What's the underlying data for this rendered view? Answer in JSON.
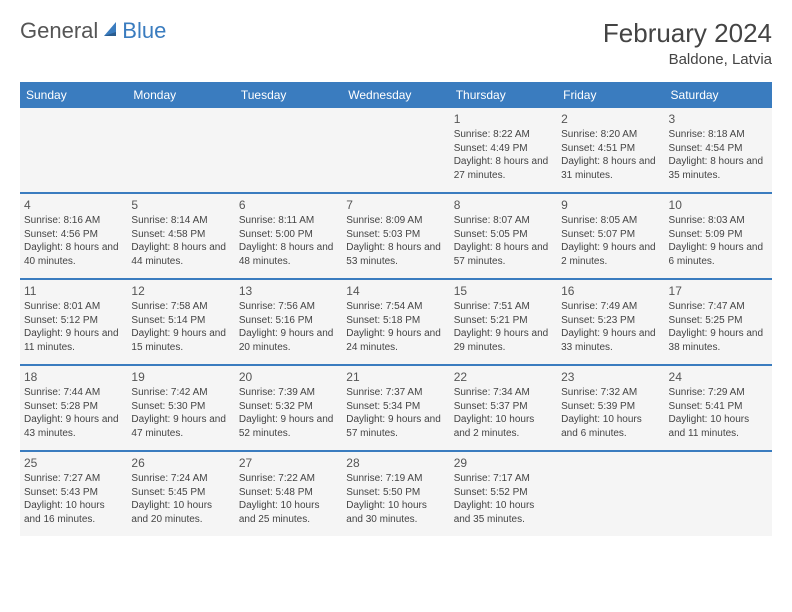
{
  "logo": {
    "text1": "General",
    "text2": "Blue"
  },
  "title": "February 2024",
  "location": "Baldone, Latvia",
  "colors": {
    "header_bg": "#3a7cbf",
    "header_text": "#ffffff",
    "cell_bg": "#f5f5f5",
    "border": "#3a7cbf",
    "title_color": "#444444",
    "body_text": "#444444"
  },
  "day_headers": [
    "Sunday",
    "Monday",
    "Tuesday",
    "Wednesday",
    "Thursday",
    "Friday",
    "Saturday"
  ],
  "weeks": [
    [
      null,
      null,
      null,
      null,
      {
        "n": "1",
        "sr": "8:22 AM",
        "ss": "4:49 PM",
        "dl": "8 hours and 27 minutes."
      },
      {
        "n": "2",
        "sr": "8:20 AM",
        "ss": "4:51 PM",
        "dl": "8 hours and 31 minutes."
      },
      {
        "n": "3",
        "sr": "8:18 AM",
        "ss": "4:54 PM",
        "dl": "8 hours and 35 minutes."
      }
    ],
    [
      {
        "n": "4",
        "sr": "8:16 AM",
        "ss": "4:56 PM",
        "dl": "8 hours and 40 minutes."
      },
      {
        "n": "5",
        "sr": "8:14 AM",
        "ss": "4:58 PM",
        "dl": "8 hours and 44 minutes."
      },
      {
        "n": "6",
        "sr": "8:11 AM",
        "ss": "5:00 PM",
        "dl": "8 hours and 48 minutes."
      },
      {
        "n": "7",
        "sr": "8:09 AM",
        "ss": "5:03 PM",
        "dl": "8 hours and 53 minutes."
      },
      {
        "n": "8",
        "sr": "8:07 AM",
        "ss": "5:05 PM",
        "dl": "8 hours and 57 minutes."
      },
      {
        "n": "9",
        "sr": "8:05 AM",
        "ss": "5:07 PM",
        "dl": "9 hours and 2 minutes."
      },
      {
        "n": "10",
        "sr": "8:03 AM",
        "ss": "5:09 PM",
        "dl": "9 hours and 6 minutes."
      }
    ],
    [
      {
        "n": "11",
        "sr": "8:01 AM",
        "ss": "5:12 PM",
        "dl": "9 hours and 11 minutes."
      },
      {
        "n": "12",
        "sr": "7:58 AM",
        "ss": "5:14 PM",
        "dl": "9 hours and 15 minutes."
      },
      {
        "n": "13",
        "sr": "7:56 AM",
        "ss": "5:16 PM",
        "dl": "9 hours and 20 minutes."
      },
      {
        "n": "14",
        "sr": "7:54 AM",
        "ss": "5:18 PM",
        "dl": "9 hours and 24 minutes."
      },
      {
        "n": "15",
        "sr": "7:51 AM",
        "ss": "5:21 PM",
        "dl": "9 hours and 29 minutes."
      },
      {
        "n": "16",
        "sr": "7:49 AM",
        "ss": "5:23 PM",
        "dl": "9 hours and 33 minutes."
      },
      {
        "n": "17",
        "sr": "7:47 AM",
        "ss": "5:25 PM",
        "dl": "9 hours and 38 minutes."
      }
    ],
    [
      {
        "n": "18",
        "sr": "7:44 AM",
        "ss": "5:28 PM",
        "dl": "9 hours and 43 minutes."
      },
      {
        "n": "19",
        "sr": "7:42 AM",
        "ss": "5:30 PM",
        "dl": "9 hours and 47 minutes."
      },
      {
        "n": "20",
        "sr": "7:39 AM",
        "ss": "5:32 PM",
        "dl": "9 hours and 52 minutes."
      },
      {
        "n": "21",
        "sr": "7:37 AM",
        "ss": "5:34 PM",
        "dl": "9 hours and 57 minutes."
      },
      {
        "n": "22",
        "sr": "7:34 AM",
        "ss": "5:37 PM",
        "dl": "10 hours and 2 minutes."
      },
      {
        "n": "23",
        "sr": "7:32 AM",
        "ss": "5:39 PM",
        "dl": "10 hours and 6 minutes."
      },
      {
        "n": "24",
        "sr": "7:29 AM",
        "ss": "5:41 PM",
        "dl": "10 hours and 11 minutes."
      }
    ],
    [
      {
        "n": "25",
        "sr": "7:27 AM",
        "ss": "5:43 PM",
        "dl": "10 hours and 16 minutes."
      },
      {
        "n": "26",
        "sr": "7:24 AM",
        "ss": "5:45 PM",
        "dl": "10 hours and 20 minutes."
      },
      {
        "n": "27",
        "sr": "7:22 AM",
        "ss": "5:48 PM",
        "dl": "10 hours and 25 minutes."
      },
      {
        "n": "28",
        "sr": "7:19 AM",
        "ss": "5:50 PM",
        "dl": "10 hours and 30 minutes."
      },
      {
        "n": "29",
        "sr": "7:17 AM",
        "ss": "5:52 PM",
        "dl": "10 hours and 35 minutes."
      },
      null,
      null
    ]
  ],
  "labels": {
    "sunrise": "Sunrise:",
    "sunset": "Sunset:",
    "daylight": "Daylight:"
  }
}
